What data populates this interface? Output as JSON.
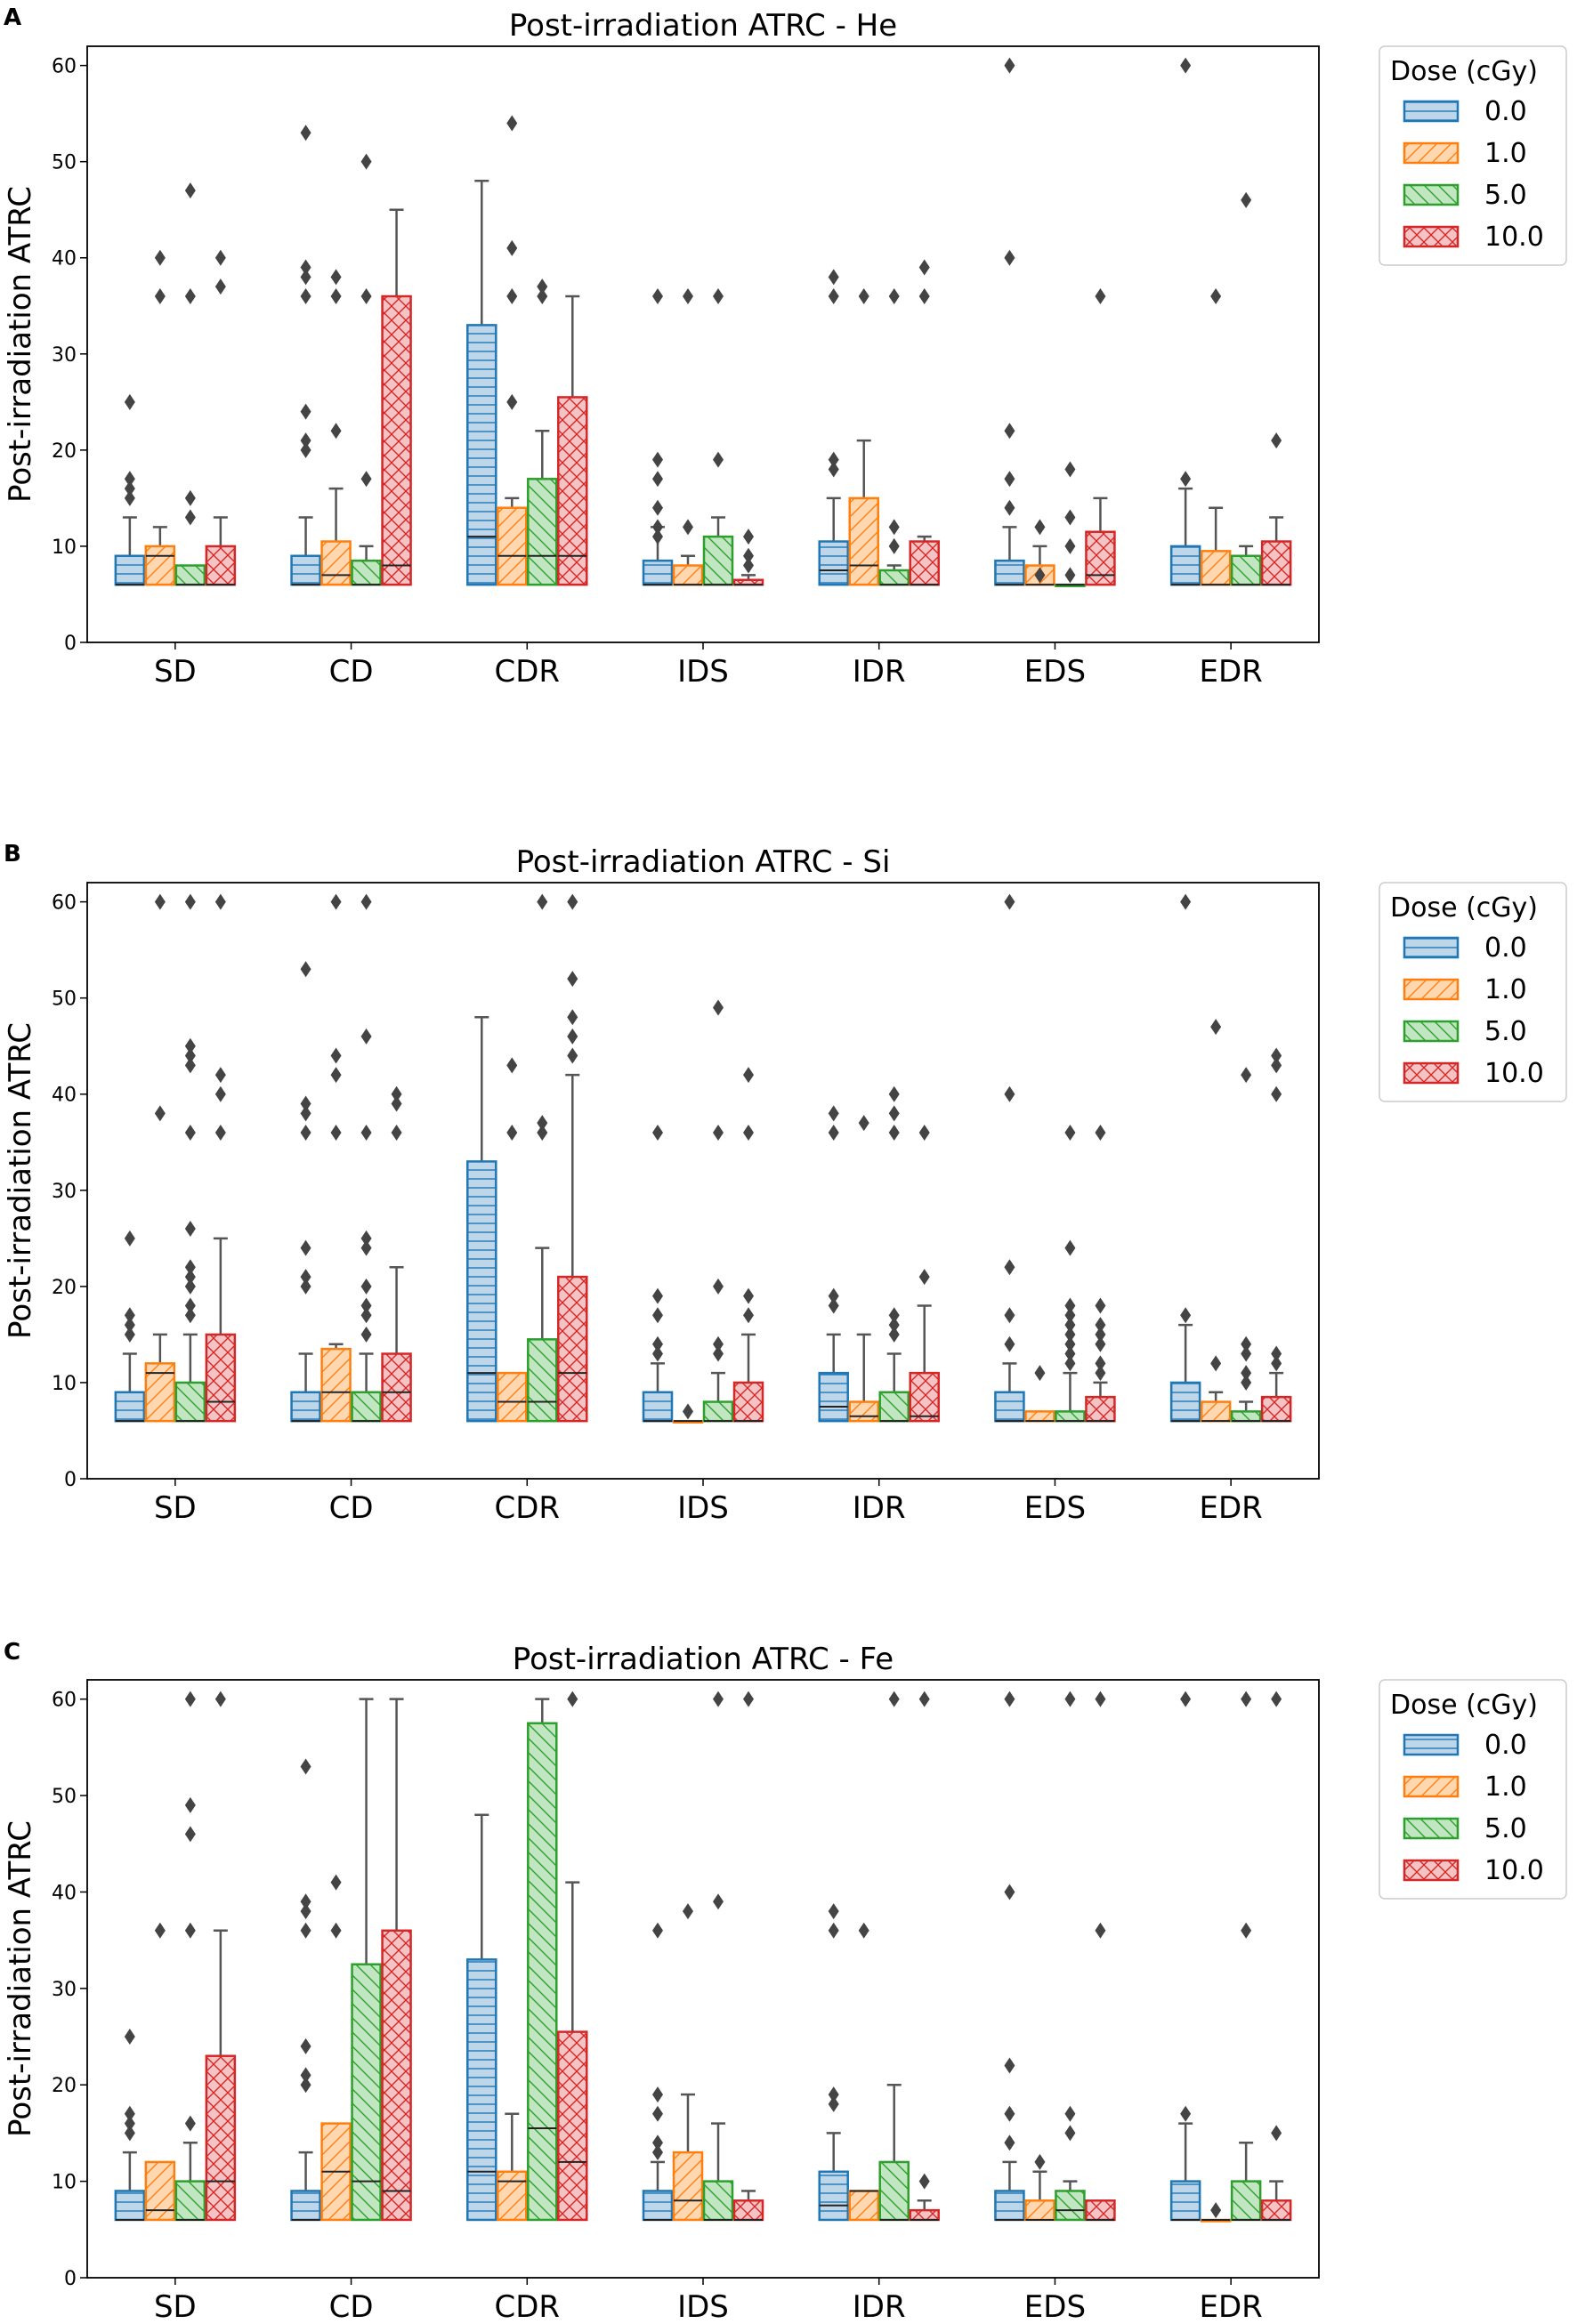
{
  "chart_data": [
    {
      "panel": "A",
      "type": "box",
      "title": "Post-irradiation ATRC  - He",
      "ylabel": "Post-irradiation ATRC",
      "ylim": [
        0,
        62
      ],
      "yticks": [
        0,
        10,
        20,
        30,
        40,
        50,
        60
      ],
      "categories": [
        "SD",
        "CD",
        "CDR",
        "IDS",
        "IDR",
        "EDS",
        "EDR"
      ],
      "legend": {
        "title": "Dose (cGy)",
        "entries": [
          "0.0",
          "1.0",
          "5.0",
          "10.0"
        ]
      },
      "boxes": [
        [
          [
            6,
            6,
            9,
            13,
            [
              17,
              15,
              25,
              16
            ]
          ],
          [
            6,
            9,
            10,
            12,
            [
              36,
              40
            ]
          ],
          [
            6,
            6,
            8,
            8,
            [
              36,
              47,
              15,
              13
            ]
          ],
          [
            6,
            6,
            10,
            13,
            [
              37,
              40
            ]
          ]
        ],
        [
          [
            6,
            6,
            9,
            13,
            [
              53,
              39,
              38,
              36,
              24,
              21,
              20
            ]
          ],
          [
            6,
            7,
            10.5,
            16,
            [
              38,
              36,
              22
            ]
          ],
          [
            6,
            6,
            8.5,
            10,
            [
              50,
              36,
              17
            ]
          ],
          [
            6,
            8,
            36,
            45,
            []
          ]
        ],
        [
          [
            6,
            11,
            33,
            48,
            []
          ],
          [
            6,
            9,
            14,
            15,
            [
              54,
              41,
              36,
              25
            ]
          ],
          [
            6,
            9,
            17,
            22,
            [
              37,
              36
            ]
          ],
          [
            6,
            9,
            25.5,
            36,
            []
          ]
        ],
        [
          [
            6,
            6,
            8.5,
            12,
            [
              36,
              19,
              17,
              14,
              12,
              11
            ]
          ],
          [
            6,
            6,
            8,
            9,
            [
              36,
              12
            ]
          ],
          [
            6,
            6,
            11,
            13,
            [
              36,
              19
            ]
          ],
          [
            6,
            6,
            6.5,
            7,
            [
              11,
              9,
              8
            ]
          ]
        ],
        [
          [
            6,
            7.5,
            10.5,
            15,
            [
              38,
              36,
              19,
              18
            ]
          ],
          [
            6,
            8,
            15,
            21,
            [
              36
            ]
          ],
          [
            6,
            6,
            7.5,
            8,
            [
              36,
              12,
              10
            ]
          ],
          [
            6,
            6,
            10.5,
            11,
            [
              39,
              36
            ]
          ]
        ],
        [
          [
            6,
            6,
            8.5,
            12,
            [
              60,
              40,
              22,
              17,
              14
            ]
          ],
          [
            6,
            6,
            8,
            10,
            [
              12,
              7
            ]
          ],
          [
            6,
            6,
            6,
            6,
            [
              18,
              13,
              10,
              7
            ]
          ],
          [
            6,
            7,
            11.5,
            15,
            [
              36
            ]
          ]
        ],
        [
          [
            6,
            6,
            10,
            16,
            [
              60,
              17
            ]
          ],
          [
            6,
            6,
            9.5,
            14,
            [
              36
            ]
          ],
          [
            6,
            6,
            9,
            10,
            [
              46
            ]
          ],
          [
            6,
            6,
            10.5,
            13,
            [
              21
            ]
          ]
        ]
      ]
    },
    {
      "panel": "B",
      "type": "box",
      "title": "Post-irradiation ATRC  - Si",
      "ylabel": "Post-irradiation ATRC",
      "ylim": [
        0,
        62
      ],
      "yticks": [
        0,
        10,
        20,
        30,
        40,
        50,
        60
      ],
      "categories": [
        "SD",
        "CD",
        "CDR",
        "IDS",
        "IDR",
        "EDS",
        "EDR"
      ],
      "legend": {
        "title": "Dose (cGy)",
        "entries": [
          "0.0",
          "1.0",
          "5.0",
          "10.0"
        ]
      },
      "boxes": [
        [
          [
            6,
            6,
            9,
            13,
            [
              25,
              17,
              15,
              16
            ]
          ],
          [
            6,
            11,
            12,
            15,
            [
              60,
              38
            ]
          ],
          [
            6,
            6,
            10,
            15,
            [
              60,
              45,
              44,
              43,
              36,
              26,
              22,
              21,
              20,
              18,
              17
            ]
          ],
          [
            6,
            8,
            15,
            25,
            [
              60,
              42,
              40,
              36
            ]
          ]
        ],
        [
          [
            6,
            6,
            9,
            13,
            [
              53,
              39,
              38,
              36,
              24,
              21,
              20
            ]
          ],
          [
            6,
            9,
            13.5,
            14,
            [
              60,
              44,
              42,
              36
            ]
          ],
          [
            6,
            6,
            9,
            13,
            [
              60,
              46,
              36,
              25,
              24,
              20,
              18,
              17,
              15
            ]
          ],
          [
            6,
            9,
            13,
            22,
            [
              40,
              39,
              36
            ]
          ]
        ],
        [
          [
            6,
            11,
            33,
            48,
            []
          ],
          [
            6,
            8,
            11,
            11,
            [
              43,
              36
            ]
          ],
          [
            6,
            8,
            14.5,
            24,
            [
              60,
              37,
              36
            ]
          ],
          [
            6,
            11,
            21,
            42,
            [
              60,
              52,
              48,
              46,
              44
            ]
          ]
        ],
        [
          [
            6,
            6,
            9,
            12,
            [
              36,
              19,
              17,
              14,
              13
            ]
          ],
          [
            6,
            6,
            6,
            6,
            [
              7
            ]
          ],
          [
            6,
            6,
            8,
            11,
            [
              49,
              36,
              20,
              14,
              13
            ]
          ],
          [
            6,
            6,
            10,
            15,
            [
              42,
              36,
              19,
              17
            ]
          ]
        ],
        [
          [
            6,
            7.5,
            11,
            15,
            [
              38,
              36,
              19,
              18
            ]
          ],
          [
            6,
            6.5,
            8,
            15,
            [
              37
            ]
          ],
          [
            6,
            6,
            9,
            13,
            [
              40,
              38,
              36,
              17,
              16,
              15
            ]
          ],
          [
            6,
            6.5,
            11,
            18,
            [
              36,
              21
            ]
          ]
        ],
        [
          [
            6,
            6,
            9,
            12,
            [
              60,
              40,
              22,
              17,
              14
            ]
          ],
          [
            6,
            6,
            7,
            7,
            [
              11
            ]
          ],
          [
            6,
            6,
            7,
            11,
            [
              36,
              24,
              18,
              17,
              16,
              15,
              14,
              13,
              12
            ]
          ],
          [
            6,
            6,
            8.5,
            10,
            [
              36,
              18,
              16,
              15,
              14,
              12,
              11
            ]
          ]
        ],
        [
          [
            6,
            6,
            10,
            16,
            [
              60,
              17
            ]
          ],
          [
            6,
            6,
            8,
            9,
            [
              47,
              12
            ]
          ],
          [
            6,
            6,
            7,
            8,
            [
              42,
              14,
              13,
              11,
              10
            ]
          ],
          [
            6,
            6,
            8.5,
            11,
            [
              44,
              43,
              40,
              13,
              12
            ]
          ]
        ]
      ]
    },
    {
      "panel": "C",
      "type": "box",
      "title": "Post-irradiation ATRC  - Fe",
      "ylabel": "Post-irradiation ATRC",
      "ylim": [
        0,
        62
      ],
      "yticks": [
        0,
        10,
        20,
        30,
        40,
        50,
        60
      ],
      "categories": [
        "SD",
        "CD",
        "CDR",
        "IDS",
        "IDR",
        "EDS",
        "EDR"
      ],
      "legend": {
        "title": "Dose (cGy)",
        "entries": [
          "0.0",
          "1.0",
          "5.0",
          "10.0"
        ]
      },
      "boxes": [
        [
          [
            6,
            6,
            9,
            13,
            [
              25,
              17,
              15,
              16
            ]
          ],
          [
            6,
            7,
            12,
            12,
            [
              36
            ]
          ],
          [
            6,
            6,
            10,
            14,
            [
              60,
              49,
              46,
              36,
              16
            ]
          ],
          [
            6,
            10,
            23,
            36,
            [
              60
            ]
          ]
        ],
        [
          [
            6,
            6,
            9,
            13,
            [
              53,
              39,
              38,
              36,
              24,
              21,
              20
            ]
          ],
          [
            6,
            11,
            16,
            16,
            [
              41,
              36
            ]
          ],
          [
            6,
            10,
            32.5,
            60,
            []
          ],
          [
            6,
            9,
            36,
            60,
            []
          ]
        ],
        [
          [
            6,
            11,
            33,
            48,
            []
          ],
          [
            6,
            10,
            11,
            17,
            []
          ],
          [
            6,
            15.5,
            57.5,
            60,
            []
          ],
          [
            6,
            12,
            25.5,
            41,
            [
              60
            ]
          ]
        ],
        [
          [
            6,
            6,
            9,
            12,
            [
              36,
              19,
              17,
              14,
              13
            ]
          ],
          [
            6,
            8,
            13,
            19,
            [
              38
            ]
          ],
          [
            6,
            6,
            10,
            16,
            [
              39,
              60
            ]
          ],
          [
            6,
            6,
            8,
            9,
            [
              60
            ]
          ]
        ],
        [
          [
            6,
            7.5,
            11,
            15,
            [
              38,
              36,
              19,
              18
            ]
          ],
          [
            6,
            9,
            9,
            9,
            [
              36
            ]
          ],
          [
            6,
            6,
            12,
            20,
            [
              60
            ]
          ],
          [
            6,
            6,
            7,
            8,
            [
              60,
              10
            ]
          ]
        ],
        [
          [
            6,
            6,
            9,
            12,
            [
              60,
              40,
              22,
              17,
              14
            ]
          ],
          [
            6,
            6,
            8,
            11,
            [
              12
            ]
          ],
          [
            6,
            7,
            9,
            10,
            [
              60,
              17,
              15
            ]
          ],
          [
            6,
            6,
            8,
            8,
            [
              60,
              36
            ]
          ]
        ],
        [
          [
            6,
            6,
            10,
            16,
            [
              60,
              17
            ]
          ],
          [
            6,
            6,
            6,
            6,
            [
              7
            ]
          ],
          [
            6,
            6,
            10,
            14,
            [
              60,
              36
            ]
          ],
          [
            6,
            6,
            8,
            10,
            [
              60,
              15
            ]
          ]
        ]
      ]
    }
  ],
  "series_styles": [
    {
      "name": "0.0",
      "edge": "#1f77b4",
      "fill": "#bed6ea",
      "hatch": "horizontal"
    },
    {
      "name": "1.0",
      "edge": "#ff7f0e",
      "fill": "#ffd8b2",
      "hatch": "diagonal-up"
    },
    {
      "name": "5.0",
      "edge": "#2ca02c",
      "fill": "#c2e6c2",
      "hatch": "diagonal-down"
    },
    {
      "name": "10.0",
      "edge": "#d62728",
      "fill": "#f4c4c4",
      "hatch": "cross"
    }
  ]
}
